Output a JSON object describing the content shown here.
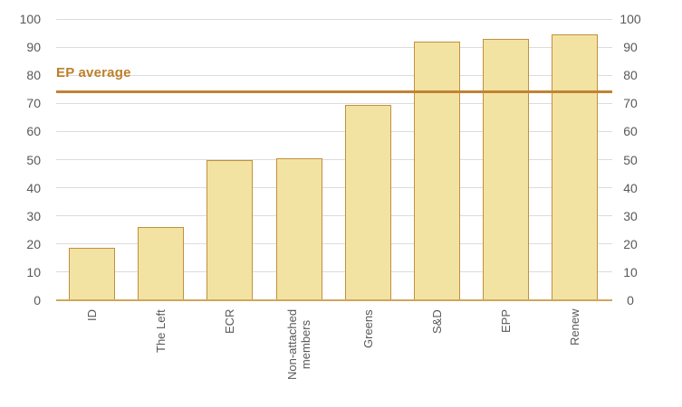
{
  "chart_data": {
    "type": "bar",
    "categories": [
      "ID",
      "The Left",
      "ECR",
      "Non-attached\nmembers",
      "Greens",
      "S&D",
      "EPP",
      "Renew"
    ],
    "values": [
      18.7,
      26,
      50,
      50.5,
      69.5,
      92,
      93,
      94.5
    ],
    "reference_line": {
      "label": "EP average",
      "value": 74
    },
    "title": "",
    "xlabel": "",
    "ylabel": "",
    "ylim": [
      0,
      100
    ],
    "yticks": [
      0,
      10,
      20,
      30,
      40,
      50,
      60,
      70,
      80,
      90,
      100
    ],
    "grid": true,
    "dual_y_axis": true,
    "legend": false,
    "colors": {
      "bar_fill": "#f2e3a2",
      "bar_border": "#c28f3e",
      "reference_line": "#c08433",
      "reference_label": "#bd7f2a",
      "baseline": "#cfa75d",
      "gridline": "#dcdcdc",
      "tick_label": "#595959"
    }
  }
}
